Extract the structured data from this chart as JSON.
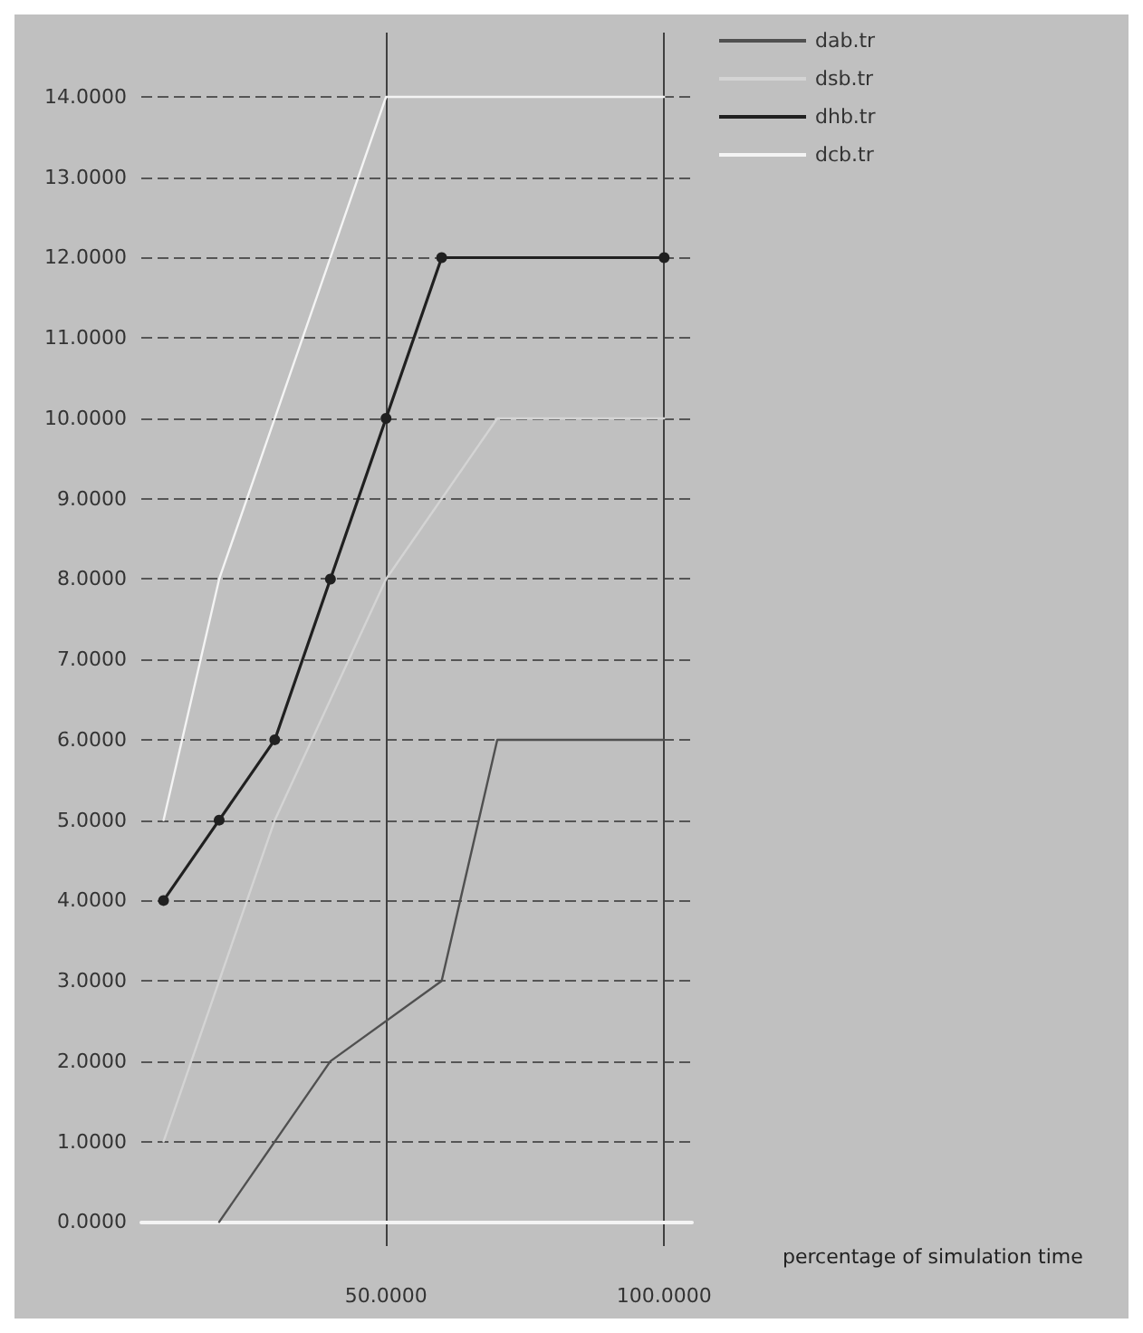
{
  "chart_data": {
    "type": "line",
    "xlabel": "percentage of simulation time",
    "xlim": [
      6,
      105
    ],
    "ylim": [
      -0.3,
      14.8
    ],
    "xticks": [
      {
        "value": 50,
        "label": "50.0000"
      },
      {
        "value": 100,
        "label": "100.0000"
      }
    ],
    "yticks": [
      {
        "value": 0,
        "label": "0.0000"
      },
      {
        "value": 1,
        "label": "1.0000"
      },
      {
        "value": 2,
        "label": "2.0000"
      },
      {
        "value": 3,
        "label": "3.0000"
      },
      {
        "value": 4,
        "label": "4.0000"
      },
      {
        "value": 5,
        "label": "5.0000"
      },
      {
        "value": 6,
        "label": "6.0000"
      },
      {
        "value": 7,
        "label": "7.0000"
      },
      {
        "value": 8,
        "label": "8.0000"
      },
      {
        "value": 9,
        "label": "9.0000"
      },
      {
        "value": 10,
        "label": "10.0000"
      },
      {
        "value": 11,
        "label": "11.0000"
      },
      {
        "value": 12,
        "label": "12.0000"
      },
      {
        "value": 13,
        "label": "13.0000"
      },
      {
        "value": 14,
        "label": "14.0000"
      }
    ],
    "grid": true,
    "legend": "top right",
    "line_style": "solid",
    "series": [
      {
        "name": "dab.tr",
        "color": "#505050",
        "marker": "none",
        "x": [
          20,
          30,
          40,
          60,
          70,
          100
        ],
        "values": [
          0,
          1,
          2,
          3,
          6,
          6
        ]
      },
      {
        "name": "dsb.tr",
        "color": "#d4d4d4",
        "marker": "none",
        "x": [
          10,
          20,
          30,
          50,
          60,
          70,
          100
        ],
        "values": [
          1,
          3,
          5,
          8,
          9,
          10,
          10
        ]
      },
      {
        "name": "dhb.tr",
        "color": "#202020",
        "marker": "circle",
        "x": [
          10,
          20,
          30,
          40,
          50,
          60,
          100
        ],
        "values": [
          4,
          5,
          6,
          8,
          10,
          12,
          12
        ]
      },
      {
        "name": "dcb.tr",
        "color": "#f4f4f4",
        "marker": "none",
        "x": [
          10,
          20,
          50,
          100
        ],
        "values": [
          5,
          8,
          14,
          14
        ]
      }
    ]
  }
}
